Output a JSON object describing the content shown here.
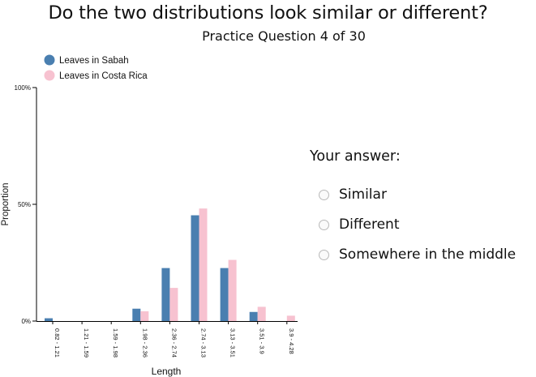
{
  "question": "Do the two distributions look similar or different?",
  "progress": "Practice Question 4 of 30",
  "answer": {
    "title": "Your answer:",
    "options": [
      "Similar",
      "Different",
      "Somewhere in the middle"
    ]
  },
  "chart_data": {
    "type": "bar",
    "xlabel": "Length",
    "ylabel": "Proportion",
    "ylim": [
      0,
      100
    ],
    "yticks": [
      "0%",
      "50%",
      "100%"
    ],
    "legend_position": "top-left",
    "categories": [
      "0.82 - 1.21",
      "1.21 - 1.59",
      "1.59 - 1.98",
      "1.98 - 2.36",
      "2.36 - 2.74",
      "2.74 - 3.13",
      "3.13 - 3.51",
      "3.51 - 3.9",
      "3.9 - 4.28"
    ],
    "series": [
      {
        "name": "Leaves in Sabah",
        "color": "#4a7fb0",
        "values": [
          1.2,
          0,
          0,
          5.3,
          22.7,
          45.3,
          22.7,
          3.9,
          0
        ]
      },
      {
        "name": "Leaves in Costa Rica",
        "color": "#f7c2d0",
        "values": [
          0,
          0,
          0,
          4.2,
          14.2,
          48.2,
          26.2,
          6.1,
          2.3
        ]
      }
    ]
  }
}
